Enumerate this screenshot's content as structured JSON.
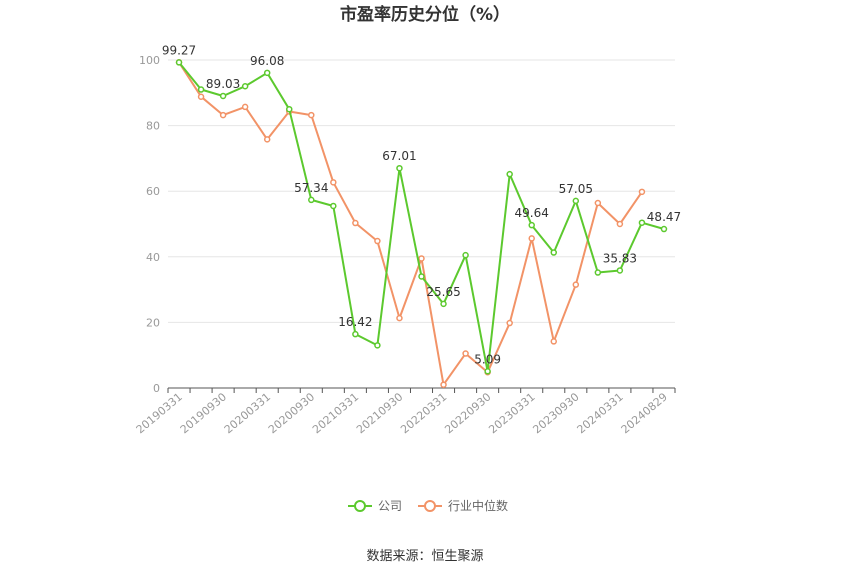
{
  "chart_data": {
    "type": "line",
    "title": "市盈率历史分位（%）",
    "xlabel": "",
    "ylabel": "",
    "ylim": [
      0,
      100
    ],
    "yticks": [
      0,
      20,
      40,
      60,
      80,
      100
    ],
    "grid": true,
    "legend_position": "bottom",
    "x": [
      "20190331",
      "20190630",
      "20190930",
      "20191231",
      "20200331",
      "20200630",
      "20200930",
      "20201231",
      "20210331",
      "20210630",
      "20210930",
      "20211231",
      "20220331",
      "20220630",
      "20220930",
      "20221231",
      "20230331",
      "20230630",
      "20230930",
      "20231231",
      "20240331",
      "20240630",
      "20240829"
    ],
    "x_tick_labels": [
      "20190331",
      "20190930",
      "20200331",
      "20200930",
      "20210331",
      "20210930",
      "20220331",
      "20220930",
      "20230331",
      "20230930",
      "20240331",
      "20240829"
    ],
    "series": [
      {
        "name": "公司",
        "color": "#5cc92e",
        "values": [
          99.27,
          91.0,
          89.03,
          92.0,
          96.08,
          85.0,
          57.34,
          55.5,
          16.42,
          13.0,
          67.01,
          34.0,
          25.65,
          40.5,
          5.09,
          65.2,
          49.64,
          41.3,
          57.05,
          35.2,
          35.83,
          50.4,
          48.47
        ],
        "labels": {
          "0": "99.27",
          "2": "89.03",
          "4": "96.08",
          "6": "57.34",
          "8": "16.42",
          "10": "67.01",
          "12": "25.65",
          "14": "5.09",
          "16": "49.64",
          "18": "57.05",
          "20": "35.83",
          "22": "48.47"
        }
      },
      {
        "name": "行业中位数",
        "color": "#f29367",
        "values": [
          99.3,
          88.8,
          83.2,
          85.7,
          75.8,
          84.3,
          83.2,
          62.7,
          50.3,
          44.8,
          21.3,
          39.5,
          1.0,
          10.5,
          4.8,
          19.8,
          45.6,
          14.2,
          31.5,
          56.4,
          50.0,
          59.8,
          null
        ]
      }
    ]
  },
  "source_text": "数据来源：恒生聚源"
}
